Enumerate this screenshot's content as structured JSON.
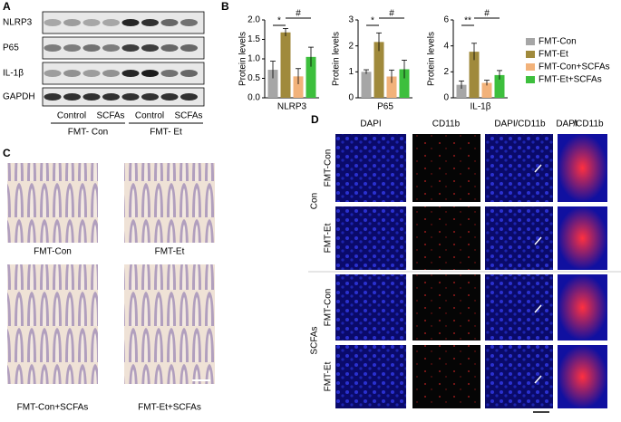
{
  "panel_labels": [
    "A",
    "B",
    "C",
    "D"
  ],
  "blot": {
    "proteins": [
      "NLRP3",
      "P65",
      "IL-1β",
      "GAPDH"
    ],
    "lanes": [
      "Control",
      "SCFAs",
      "Control",
      "SCFAs"
    ],
    "groups": [
      "FMT- Con",
      "FMT- Et"
    ]
  },
  "legend": [
    {
      "name": "FMT-Con",
      "color": "#a6a6a6"
    },
    {
      "name": "FMT-Et",
      "color": "#a08a3c"
    },
    {
      "name": "FMT-Con+SCFAs",
      "color": "#f2b27a"
    },
    {
      "name": "FMT-Et+SCFAs",
      "color": "#3dbf3d"
    }
  ],
  "chart_data": [
    {
      "type": "bar",
      "title": "NLRP3",
      "y_label": "Protein levels",
      "values": [
        0.72,
        1.68,
        0.55,
        1.05
      ],
      "errors": [
        0.22,
        0.1,
        0.2,
        0.25
      ],
      "ylim": [
        0,
        2.0
      ],
      "yticks": [
        {
          "value": 0,
          "label": "0.0"
        },
        0.5,
        {
          "value": 1,
          "label": "1.0"
        },
        1.5,
        {
          "value": 2,
          "label": "2.0"
        }
      ],
      "annotations": [
        "*",
        "#"
      ]
    },
    {
      "type": "bar",
      "title": "P65",
      "y_label": "Protein levels",
      "values": [
        1.0,
        2.15,
        0.82,
        1.1
      ],
      "errors": [
        0.08,
        0.35,
        0.25,
        0.35
      ],
      "ylim": [
        0,
        3
      ],
      "yticks": [
        0,
        1,
        2,
        3
      ],
      "annotations": [
        "*",
        "#"
      ]
    },
    {
      "type": "bar",
      "title": "IL-1β",
      "y_label": "Protein levels",
      "values": [
        1.0,
        3.55,
        1.15,
        1.75
      ],
      "errors": [
        0.3,
        0.65,
        0.2,
        0.35
      ],
      "ylim": [
        0,
        6
      ],
      "yticks": [
        0,
        2,
        4,
        6
      ],
      "annotations": [
        "**",
        "#"
      ]
    }
  ],
  "histology": {
    "captions": [
      "FMT-Con",
      "FMT-Et",
      "FMT-Con+SCFAs",
      "FMT-Et+SCFAs"
    ]
  },
  "immunofluorescence": {
    "columns": [
      "DAPI",
      "CD11b"
    ],
    "merge": [
      "DAPI",
      "/CD11b"
    ],
    "groups": [
      "Con",
      "SCFAs"
    ],
    "rows": [
      "FMT-Con",
      "FMT-Et"
    ]
  }
}
